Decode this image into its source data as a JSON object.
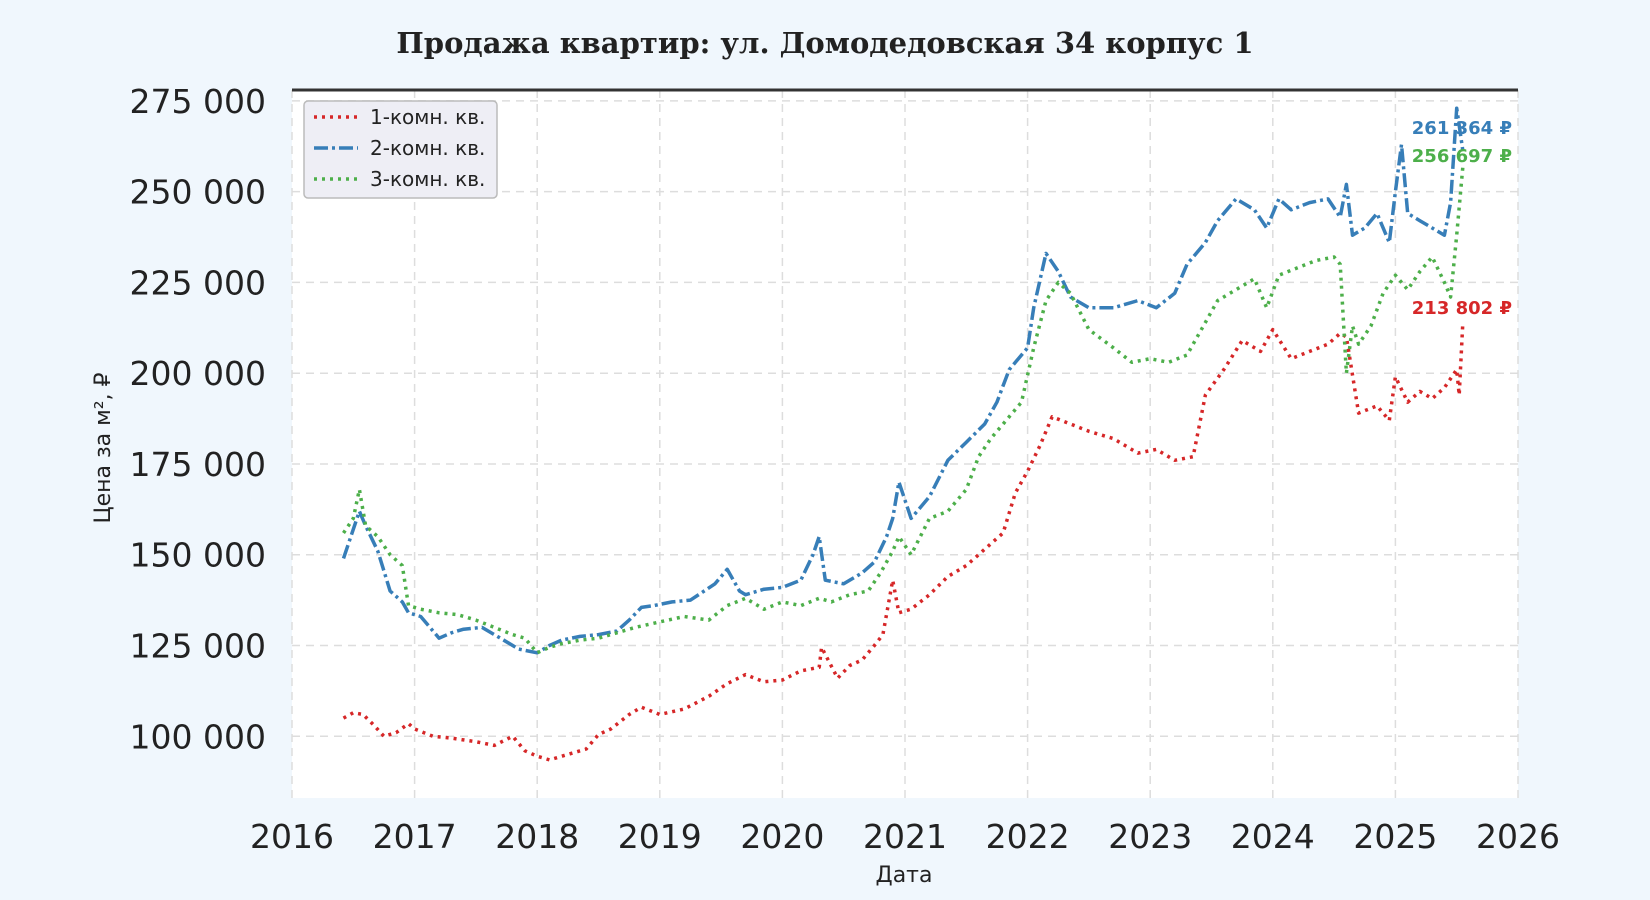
{
  "chart_data": {
    "type": "line",
    "title": "Продажа квартир: ул. Домодедовская 34 корпус 1",
    "xlabel": "Дата",
    "ylabel": "Цена за м², ₽",
    "xlim": [
      2016.0,
      2026.0
    ],
    "ylim": [
      83000,
      278000
    ],
    "x_ticks": [
      2016,
      2017,
      2018,
      2019,
      2020,
      2021,
      2022,
      2023,
      2024,
      2025,
      2026
    ],
    "x_tick_labels": [
      "2016",
      "2017",
      "2018",
      "2019",
      "2020",
      "2021",
      "2022",
      "2023",
      "2024",
      "2025",
      "2026"
    ],
    "y_ticks": [
      100000,
      125000,
      150000,
      175000,
      200000,
      225000,
      250000,
      275000
    ],
    "y_tick_labels": [
      "100 000",
      "125 000",
      "150 000",
      "175 000",
      "200 000",
      "225 000",
      "250 000",
      "275 000"
    ],
    "grid": true,
    "legend_position": "top-left",
    "series": [
      {
        "name": "1-комн. кв.",
        "color": "#d62728",
        "style": "dotted",
        "end_label": "213 802 ₽",
        "x": [
          2016.42,
          2016.5,
          2016.58,
          2016.67,
          2016.75,
          2016.85,
          2016.95,
          2017.0,
          2017.15,
          2017.3,
          2017.5,
          2017.65,
          2017.8,
          2017.9,
          2018.0,
          2018.1,
          2018.25,
          2018.4,
          2018.5,
          2018.6,
          2018.75,
          2018.85,
          2019.0,
          2019.2,
          2019.4,
          2019.55,
          2019.7,
          2019.85,
          2020.0,
          2020.15,
          2020.3,
          2020.32,
          2020.45,
          2020.55,
          2020.65,
          2020.75,
          2020.82,
          2020.9,
          2020.95,
          2021.05,
          2021.2,
          2021.35,
          2021.5,
          2021.6,
          2021.7,
          2021.8,
          2021.9,
          2022.0,
          2022.1,
          2022.2,
          2022.35,
          2022.5,
          2022.7,
          2022.9,
          2023.05,
          2023.2,
          2023.35,
          2023.45,
          2023.6,
          2023.75,
          2023.9,
          2024.0,
          2024.15,
          2024.3,
          2024.45,
          2024.55,
          2024.6,
          2024.7,
          2024.85,
          2024.95,
          2025.0,
          2025.1,
          2025.2,
          2025.3,
          2025.4,
          2025.5,
          2025.52,
          2025.55
        ],
        "values": [
          105000,
          106500,
          106000,
          103000,
          100000,
          101000,
          103500,
          102000,
          100000,
          99500,
          98500,
          97500,
          100000,
          96000,
          94500,
          93500,
          95000,
          96500,
          100500,
          102000,
          106000,
          108000,
          106000,
          107500,
          111000,
          114500,
          117000,
          115000,
          115500,
          118000,
          119000,
          124500,
          116000,
          119500,
          121000,
          125000,
          128000,
          143000,
          134000,
          135000,
          139000,
          144000,
          147000,
          150000,
          153000,
          156000,
          167000,
          173000,
          180000,
          188000,
          186000,
          184000,
          182000,
          178000,
          179000,
          176000,
          177000,
          194000,
          201000,
          209000,
          206000,
          212000,
          204000,
          206000,
          208000,
          211000,
          210000,
          189000,
          191000,
          187000,
          199000,
          192000,
          195000,
          193000,
          196000,
          201000,
          194000,
          213802
        ]
      },
      {
        "name": "2-комн. кв.",
        "color": "#377eb8",
        "style": "dashdot",
        "end_label": "261 364 ₽",
        "x": [
          2016.42,
          2016.5,
          2016.55,
          2016.6,
          2016.7,
          2016.8,
          2016.9,
          2016.95,
          2017.05,
          2017.2,
          2017.3,
          2017.4,
          2017.55,
          2017.7,
          2017.85,
          2018.0,
          2018.1,
          2018.2,
          2018.35,
          2018.5,
          2018.65,
          2018.75,
          2018.85,
          2018.95,
          2019.1,
          2019.25,
          2019.45,
          2019.55,
          2019.65,
          2019.7,
          2019.85,
          2020.0,
          2020.15,
          2020.25,
          2020.3,
          2020.35,
          2020.5,
          2020.65,
          2020.75,
          2020.85,
          2020.9,
          2020.95,
          2021.05,
          2021.2,
          2021.35,
          2021.5,
          2021.65,
          2021.75,
          2021.85,
          2022.0,
          2022.05,
          2022.15,
          2022.25,
          2022.35,
          2022.5,
          2022.7,
          2022.9,
          2023.05,
          2023.2,
          2023.3,
          2023.45,
          2023.55,
          2023.7,
          2023.85,
          2023.95,
          2024.05,
          2024.15,
          2024.3,
          2024.45,
          2024.55,
          2024.6,
          2024.65,
          2024.75,
          2024.85,
          2024.95,
          2025.0,
          2025.05,
          2025.1,
          2025.2,
          2025.3,
          2025.4,
          2025.45,
          2025.5,
          2025.55
        ],
        "values": [
          149000,
          157000,
          162000,
          158000,
          151000,
          140000,
          137000,
          134000,
          133000,
          127000,
          128500,
          129500,
          130000,
          127000,
          124000,
          123000,
          125000,
          126500,
          127500,
          128000,
          129000,
          132000,
          135500,
          136000,
          137000,
          137500,
          142000,
          146000,
          140000,
          139000,
          140500,
          141000,
          143000,
          150000,
          155000,
          143000,
          142000,
          145000,
          148000,
          155000,
          160000,
          170000,
          160000,
          166000,
          176000,
          181000,
          186000,
          192000,
          201000,
          207000,
          218000,
          233000,
          228000,
          221000,
          218000,
          218000,
          220000,
          218000,
          222000,
          230000,
          236000,
          242000,
          248000,
          245000,
          240000,
          248000,
          245000,
          247000,
          248000,
          243000,
          252000,
          238000,
          240000,
          244000,
          236000,
          250000,
          263000,
          244000,
          242000,
          240000,
          238000,
          247000,
          273000,
          261364
        ]
      },
      {
        "name": "3-комн. кв.",
        "color": "#4daf4a",
        "style": "dotted",
        "end_label": "256 697 ₽",
        "x": [
          2016.42,
          2016.5,
          2016.55,
          2016.6,
          2016.7,
          2016.8,
          2016.9,
          2016.95,
          2017.05,
          2017.2,
          2017.35,
          2017.5,
          2017.65,
          2017.8,
          2017.9,
          2018.0,
          2018.1,
          2018.2,
          2018.35,
          2018.5,
          2018.65,
          2018.8,
          2019.0,
          2019.2,
          2019.4,
          2019.55,
          2019.7,
          2019.85,
          2020.0,
          2020.15,
          2020.3,
          2020.4,
          2020.55,
          2020.7,
          2020.8,
          2020.9,
          2020.95,
          2021.05,
          2021.2,
          2021.35,
          2021.5,
          2021.6,
          2021.7,
          2021.85,
          2021.95,
          2022.05,
          2022.15,
          2022.25,
          2022.35,
          2022.5,
          2022.7,
          2022.85,
          2023.0,
          2023.15,
          2023.3,
          2023.45,
          2023.55,
          2023.7,
          2023.85,
          2023.95,
          2024.05,
          2024.2,
          2024.35,
          2024.5,
          2024.55,
          2024.6,
          2024.65,
          2024.7,
          2024.8,
          2024.9,
          2025.0,
          2025.1,
          2025.2,
          2025.3,
          2025.4,
          2025.45,
          2025.5,
          2025.55
        ],
        "values": [
          156000,
          160000,
          168000,
          158000,
          155000,
          150000,
          147000,
          136000,
          135000,
          134000,
          133500,
          132000,
          130000,
          128000,
          127000,
          123000,
          124500,
          125500,
          126500,
          127000,
          128500,
          130000,
          131500,
          133000,
          132000,
          136000,
          138000,
          135000,
          137000,
          136000,
          138000,
          137000,
          139000,
          140000,
          145000,
          151000,
          155000,
          150000,
          160000,
          162000,
          168000,
          177000,
          182000,
          188000,
          192000,
          207000,
          220000,
          225000,
          222000,
          212000,
          207000,
          203000,
          204000,
          203000,
          205000,
          214000,
          220000,
          223000,
          226000,
          218000,
          227000,
          229000,
          231000,
          232000,
          230000,
          200000,
          213000,
          208000,
          213000,
          222000,
          227000,
          223000,
          228000,
          232000,
          225000,
          221000,
          238000,
          256697
        ]
      }
    ]
  }
}
